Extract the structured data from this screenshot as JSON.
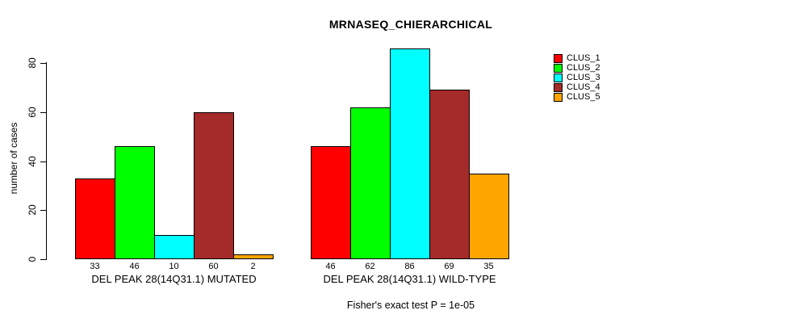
{
  "chart_data": {
    "type": "bar",
    "title": "MRNASEQ_CHIERARCHICAL",
    "ylabel": "number of cases",
    "caption": "Fisher's exact test P = 1e-05",
    "yticks": [
      0,
      20,
      40,
      60,
      80
    ],
    "ylim": [
      0,
      86
    ],
    "grid": false,
    "legend": {
      "position": "top-right",
      "entries": [
        {
          "label": "CLUS_1",
          "color": "#FF0000"
        },
        {
          "label": "CLUS_2",
          "color": "#00FF00"
        },
        {
          "label": "CLUS_3",
          "color": "#00FFFF"
        },
        {
          "label": "CLUS_4",
          "color": "#A52A2A"
        },
        {
          "label": "CLUS_5",
          "color": "#FFA500"
        }
      ]
    },
    "groups": [
      {
        "label": "DEL PEAK 28(14Q31.1) MUTATED",
        "series": [
          "CLUS_1",
          "CLUS_2",
          "CLUS_3",
          "CLUS_4",
          "CLUS_5"
        ],
        "values": [
          33,
          46,
          10,
          60,
          2
        ]
      },
      {
        "label": "DEL PEAK 28(14Q31.1) WILD-TYPE",
        "series": [
          "CLUS_1",
          "CLUS_2",
          "CLUS_3",
          "CLUS_4",
          "CLUS_5"
        ],
        "values": [
          46,
          62,
          86,
          69,
          35
        ]
      }
    ]
  }
}
